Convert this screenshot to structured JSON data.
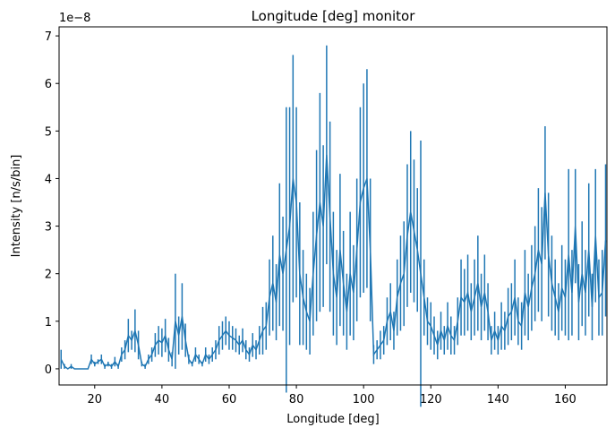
{
  "chart_data": {
    "type": "errorbar_line",
    "title": "Longitude [deg] monitor",
    "xlabel": "Longitude [deg]",
    "ylabel": "Intensity [n/s/bin]",
    "offset_label": "1e−8",
    "xlim": [
      9.4,
      172.4
    ],
    "ylim": [
      -0.34,
      7.19
    ],
    "xticks": [
      20,
      40,
      60,
      80,
      100,
      120,
      140,
      160
    ],
    "yticks": [
      0,
      1,
      2,
      3,
      4,
      5,
      6,
      7
    ],
    "x": [
      10,
      11,
      12,
      13,
      14,
      15,
      16,
      17,
      18,
      19,
      20,
      21,
      22,
      23,
      24,
      25,
      26,
      27,
      28,
      29,
      30,
      31,
      32,
      33,
      34,
      35,
      36,
      37,
      38,
      39,
      40,
      41,
      42,
      43,
      44,
      45,
      46,
      47,
      48,
      49,
      50,
      51,
      52,
      53,
      54,
      55,
      56,
      57,
      58,
      59,
      60,
      61,
      62,
      63,
      64,
      65,
      66,
      67,
      68,
      69,
      70,
      71,
      72,
      73,
      74,
      75,
      76,
      77,
      78,
      79,
      80,
      81,
      82,
      83,
      84,
      85,
      86,
      87,
      88,
      89,
      90,
      91,
      92,
      93,
      94,
      95,
      96,
      97,
      98,
      99,
      100,
      101,
      102,
      103,
      104,
      105,
      106,
      107,
      108,
      109,
      110,
      111,
      112,
      113,
      114,
      115,
      116,
      117,
      118,
      119,
      120,
      121,
      122,
      123,
      124,
      125,
      126,
      127,
      128,
      129,
      130,
      131,
      132,
      133,
      134,
      135,
      136,
      137,
      138,
      139,
      140,
      141,
      142,
      143,
      144,
      145,
      146,
      147,
      148,
      149,
      150,
      151,
      152,
      153,
      154,
      155,
      156,
      157,
      158,
      159,
      160,
      161,
      162,
      163,
      164,
      165,
      166,
      167,
      168,
      169,
      170,
      171,
      172
    ],
    "series": [
      {
        "color": "#1f77b4",
        "values": [
          0.2,
          0.05,
          0,
          0.05,
          0,
          0,
          0,
          0,
          0,
          0.2,
          0.1,
          0.15,
          0.2,
          0.05,
          0.1,
          0.05,
          0.15,
          0.05,
          0.3,
          0.4,
          0.7,
          0.6,
          0.8,
          0.5,
          0.1,
          0.05,
          0.2,
          0.3,
          0.5,
          0.6,
          0.55,
          0.7,
          0.4,
          0.2,
          1.0,
          0.7,
          1.1,
          0.6,
          0.2,
          0.1,
          0.3,
          0.2,
          0.1,
          0.3,
          0.2,
          0.3,
          0.4,
          0.6,
          0.7,
          0.8,
          0.7,
          0.65,
          0.6,
          0.5,
          0.6,
          0.4,
          0.3,
          0.5,
          0.4,
          0.6,
          0.8,
          0.9,
          1.5,
          1.8,
          1.4,
          2.4,
          2.0,
          2.5,
          3.0,
          4.0,
          3.5,
          2.0,
          1.5,
          1.2,
          1.0,
          2.0,
          2.8,
          3.5,
          3.0,
          4.5,
          3.2,
          2.0,
          1.5,
          2.5,
          1.8,
          1.2,
          2.0,
          1.6,
          2.5,
          3.5,
          3.8,
          4.0,
          2.5,
          0.3,
          0.4,
          0.5,
          0.6,
          1.0,
          1.2,
          0.8,
          1.5,
          1.8,
          2.0,
          2.8,
          3.3,
          2.9,
          2.5,
          2.0,
          1.5,
          1.0,
          0.9,
          0.7,
          0.5,
          0.8,
          0.6,
          0.9,
          0.7,
          0.6,
          1.0,
          1.5,
          1.4,
          1.6,
          1.2,
          1.5,
          1.8,
          1.3,
          1.6,
          1.2,
          0.6,
          0.8,
          0.6,
          0.9,
          0.8,
          1.1,
          1.2,
          1.5,
          1.0,
          0.9,
          1.6,
          1.3,
          1.7,
          2.0,
          2.5,
          2.2,
          3.7,
          2.4,
          1.8,
          1.5,
          1.2,
          1.7,
          1.5,
          2.4,
          1.6,
          3.0,
          1.4,
          2.0,
          1.6,
          2.5,
          1.3,
          2.8,
          1.5,
          1.6,
          2.7
        ],
        "errors": [
          0.2,
          0.05,
          0,
          0.05,
          0,
          0,
          0,
          0,
          0,
          0.1,
          0.05,
          0.05,
          0.1,
          0.05,
          0.05,
          0.05,
          0.1,
          0.05,
          0.15,
          0.2,
          0.35,
          0.2,
          0.45,
          0.3,
          0.05,
          0.05,
          0.1,
          0.15,
          0.25,
          0.3,
          0.3,
          0.35,
          0.25,
          0.15,
          1.0,
          0.4,
          0.7,
          0.35,
          0.1,
          0.05,
          0.15,
          0.1,
          0.05,
          0.15,
          0.1,
          0.15,
          0.2,
          0.3,
          0.3,
          0.3,
          0.3,
          0.25,
          0.25,
          0.2,
          0.25,
          0.2,
          0.15,
          0.25,
          0.2,
          0.3,
          0.5,
          0.5,
          0.8,
          1.0,
          0.8,
          1.5,
          1.2,
          3.0,
          2.5,
          2.6,
          2.0,
          1.5,
          1.0,
          0.8,
          0.7,
          1.3,
          1.8,
          2.3,
          1.7,
          2.3,
          2.0,
          1.3,
          1.0,
          1.6,
          1.1,
          0.8,
          1.3,
          1.0,
          1.5,
          2.0,
          2.2,
          2.3,
          1.5,
          0.2,
          0.2,
          0.3,
          0.3,
          0.5,
          0.6,
          0.4,
          0.8,
          1.0,
          1.1,
          1.5,
          1.7,
          1.5,
          1.3,
          2.8,
          0.8,
          0.5,
          0.5,
          0.4,
          0.3,
          0.4,
          0.3,
          0.5,
          0.4,
          0.3,
          0.5,
          0.8,
          0.7,
          0.8,
          0.6,
          0.8,
          1.0,
          0.7,
          0.8,
          0.6,
          0.3,
          0.4,
          0.3,
          0.5,
          0.4,
          0.6,
          0.6,
          0.8,
          0.5,
          0.5,
          0.9,
          0.7,
          0.9,
          1.0,
          1.3,
          1.2,
          1.4,
          1.3,
          1.0,
          0.8,
          0.6,
          0.9,
          0.8,
          1.8,
          0.9,
          1.2,
          0.8,
          1.1,
          0.9,
          1.4,
          0.7,
          1.4,
          0.8,
          0.9,
          1.6
        ]
      }
    ]
  }
}
